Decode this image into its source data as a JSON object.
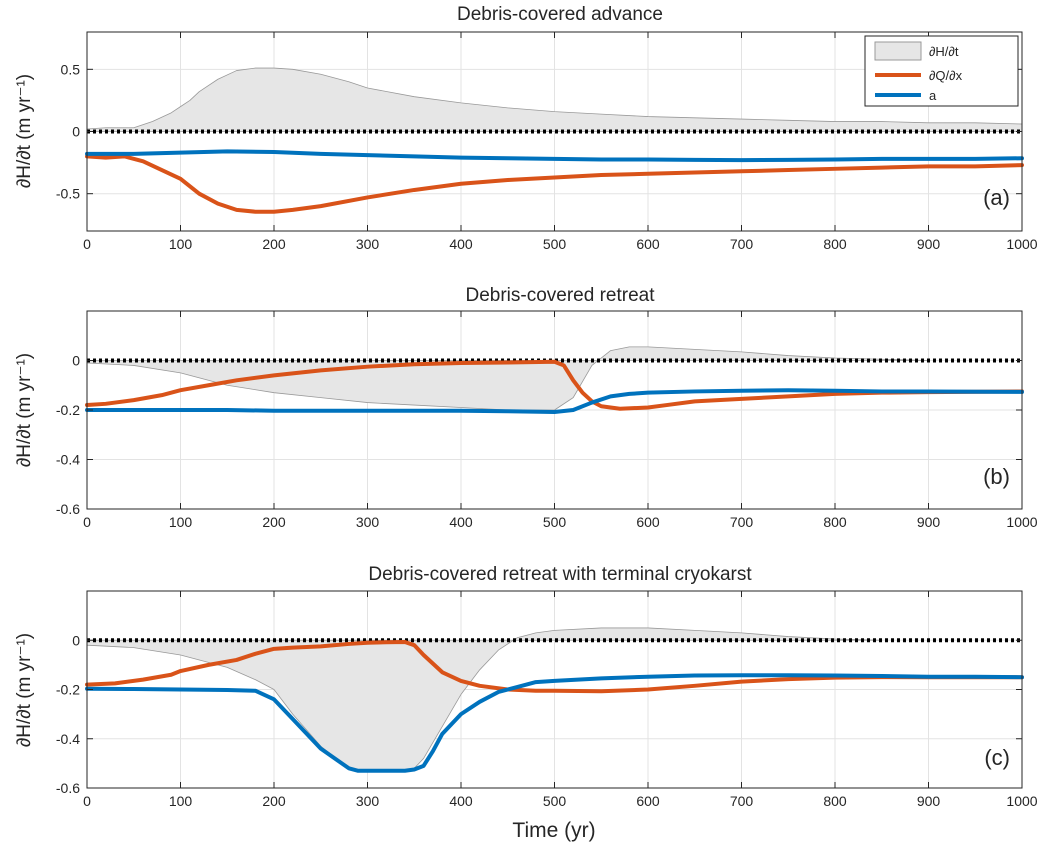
{
  "figure": {
    "xlabel": "Time (yr)"
  },
  "legend": {
    "items": [
      {
        "label": "∂H/∂t",
        "kind": "area"
      },
      {
        "label": "∂Q/∂x",
        "kind": "line"
      },
      {
        "label": "a",
        "kind": "line"
      }
    ]
  },
  "colors": {
    "dhdt_fill": "#e6e6e6",
    "dhdt_edge": "#999999",
    "dqdx": "#d95319",
    "a": "#0072bd",
    "zero_line": "#000000",
    "grid": "#e3e3e3",
    "axis": "#262626"
  },
  "chart_data": [
    {
      "type": "line",
      "title": "Debris-covered advance",
      "panel_label": "(a)",
      "ylabel": "∂H/∂t (m yr⁻¹)",
      "xlim": [
        0,
        1000
      ],
      "ylim": [
        -0.8,
        0.8
      ],
      "xticks": [
        0,
        100,
        200,
        300,
        400,
        500,
        600,
        700,
        800,
        900,
        1000
      ],
      "yticks": [
        -0.5,
        0,
        0.5
      ],
      "ytick_labels": [
        "-0.5",
        "0",
        "0.5"
      ],
      "grid": true,
      "legend": "top-right",
      "series": [
        {
          "name": "∂H/∂t",
          "style": "area",
          "x": [
            0,
            20,
            50,
            70,
            90,
            100,
            110,
            120,
            140,
            160,
            180,
            200,
            220,
            250,
            280,
            300,
            350,
            400,
            450,
            500,
            550,
            600,
            650,
            700,
            750,
            800,
            850,
            900,
            950,
            1000
          ],
          "y": [
            0.02,
            0.03,
            0.03,
            0.08,
            0.15,
            0.2,
            0.25,
            0.32,
            0.42,
            0.49,
            0.51,
            0.51,
            0.5,
            0.46,
            0.4,
            0.35,
            0.28,
            0.23,
            0.19,
            0.16,
            0.14,
            0.12,
            0.11,
            0.1,
            0.09,
            0.08,
            0.08,
            0.07,
            0.07,
            0.06
          ]
        },
        {
          "name": "∂Q/∂x",
          "style": "line",
          "x": [
            0,
            20,
            40,
            60,
            80,
            100,
            120,
            140,
            160,
            180,
            200,
            220,
            250,
            300,
            350,
            400,
            450,
            500,
            550,
            600,
            650,
            700,
            750,
            800,
            850,
            900,
            950,
            1000
          ],
          "y": [
            -0.2,
            -0.21,
            -0.2,
            -0.24,
            -0.31,
            -0.38,
            -0.5,
            -0.58,
            -0.63,
            -0.645,
            -0.645,
            -0.63,
            -0.6,
            -0.53,
            -0.47,
            -0.42,
            -0.39,
            -0.37,
            -0.35,
            -0.34,
            -0.33,
            -0.32,
            -0.31,
            -0.3,
            -0.29,
            -0.28,
            -0.28,
            -0.27
          ]
        },
        {
          "name": "a",
          "style": "line",
          "x": [
            0,
            50,
            100,
            150,
            200,
            250,
            300,
            350,
            400,
            450,
            500,
            550,
            600,
            650,
            700,
            750,
            800,
            850,
            900,
            950,
            1000
          ],
          "y": [
            -0.18,
            -0.18,
            -0.17,
            -0.16,
            -0.165,
            -0.18,
            -0.19,
            -0.2,
            -0.21,
            -0.215,
            -0.22,
            -0.225,
            -0.225,
            -0.228,
            -0.23,
            -0.228,
            -0.225,
            -0.22,
            -0.22,
            -0.22,
            -0.215
          ]
        },
        {
          "name": "zero",
          "style": "dotted",
          "x": [
            0,
            1000
          ],
          "y": [
            0,
            0
          ]
        }
      ]
    },
    {
      "type": "line",
      "title": "Debris-covered retreat",
      "panel_label": "(b)",
      "ylabel": "∂H/∂t (m yr⁻¹)",
      "xlim": [
        0,
        1000
      ],
      "ylim": [
        -0.6,
        0.2
      ],
      "xticks": [
        0,
        100,
        200,
        300,
        400,
        500,
        600,
        700,
        800,
        900,
        1000
      ],
      "yticks": [
        -0.6,
        -0.4,
        -0.2,
        0
      ],
      "ytick_labels": [
        "-0.6",
        "-0.4",
        "-0.2",
        "0"
      ],
      "grid": true,
      "series": [
        {
          "name": "∂H/∂t",
          "style": "area",
          "x": [
            0,
            50,
            100,
            150,
            200,
            250,
            300,
            350,
            400,
            450,
            500,
            520,
            540,
            560,
            580,
            600,
            650,
            700,
            750,
            800,
            850,
            900
          ],
          "y": [
            -0.01,
            -0.02,
            -0.05,
            -0.1,
            -0.13,
            -0.15,
            -0.17,
            -0.18,
            -0.19,
            -0.2,
            -0.2,
            -0.15,
            -0.02,
            0.04,
            0.055,
            0.055,
            0.045,
            0.035,
            0.02,
            0.01,
            0.005,
            0
          ]
        },
        {
          "name": "∂Q/∂x",
          "style": "line",
          "x": [
            0,
            20,
            50,
            80,
            100,
            130,
            160,
            200,
            250,
            300,
            350,
            400,
            450,
            500,
            510,
            520,
            530,
            540,
            550,
            570,
            600,
            620,
            650,
            700,
            750,
            800,
            850,
            900,
            1000
          ],
          "y": [
            -0.18,
            -0.175,
            -0.16,
            -0.14,
            -0.12,
            -0.1,
            -0.08,
            -0.06,
            -0.04,
            -0.025,
            -0.015,
            -0.01,
            -0.008,
            -0.005,
            -0.02,
            -0.08,
            -0.13,
            -0.165,
            -0.185,
            -0.195,
            -0.19,
            -0.18,
            -0.165,
            -0.155,
            -0.145,
            -0.135,
            -0.13,
            -0.128,
            -0.125
          ]
        },
        {
          "name": "a",
          "style": "line",
          "x": [
            0,
            50,
            100,
            150,
            200,
            250,
            300,
            350,
            400,
            450,
            500,
            520,
            540,
            560,
            580,
            600,
            650,
            700,
            750,
            800,
            850,
            900,
            1000
          ],
          "y": [
            -0.2,
            -0.2,
            -0.2,
            -0.2,
            -0.203,
            -0.203,
            -0.203,
            -0.203,
            -0.203,
            -0.205,
            -0.208,
            -0.2,
            -0.17,
            -0.145,
            -0.135,
            -0.13,
            -0.125,
            -0.122,
            -0.12,
            -0.122,
            -0.125,
            -0.125,
            -0.127
          ]
        },
        {
          "name": "zero",
          "style": "dotted",
          "x": [
            0,
            1000
          ],
          "y": [
            0,
            0
          ]
        }
      ]
    },
    {
      "type": "line",
      "title": "Debris-covered retreat with terminal cryokarst",
      "panel_label": "(c)",
      "ylabel": "∂H/∂t (m yr⁻¹)",
      "xlabel": "Time (yr)",
      "xlim": [
        0,
        1000
      ],
      "ylim": [
        -0.6,
        0.2
      ],
      "xticks": [
        0,
        100,
        200,
        300,
        400,
        500,
        600,
        700,
        800,
        900,
        1000
      ],
      "yticks": [
        -0.6,
        -0.4,
        -0.2,
        0
      ],
      "ytick_labels": [
        "-0.6",
        "-0.4",
        "-0.2",
        "0"
      ],
      "grid": true,
      "series": [
        {
          "name": "∂H/∂t",
          "style": "area",
          "x": [
            0,
            50,
            100,
            150,
            180,
            200,
            220,
            250,
            280,
            300,
            320,
            340,
            350,
            360,
            380,
            400,
            420,
            440,
            460,
            480,
            500,
            550,
            600,
            650,
            700,
            750,
            800,
            850
          ],
          "y": [
            -0.02,
            -0.03,
            -0.06,
            -0.11,
            -0.16,
            -0.2,
            -0.3,
            -0.43,
            -0.52,
            -0.53,
            -0.53,
            -0.53,
            -0.52,
            -0.48,
            -0.35,
            -0.22,
            -0.12,
            -0.04,
            0.01,
            0.03,
            0.04,
            0.05,
            0.05,
            0.04,
            0.03,
            0.015,
            0.005,
            0
          ]
        },
        {
          "name": "∂Q/∂x",
          "style": "line",
          "x": [
            0,
            30,
            60,
            90,
            100,
            130,
            160,
            180,
            200,
            220,
            250,
            280,
            300,
            320,
            340,
            350,
            360,
            380,
            400,
            420,
            450,
            480,
            500,
            550,
            600,
            650,
            700,
            750,
            800,
            850,
            900,
            1000
          ],
          "y": [
            -0.18,
            -0.175,
            -0.16,
            -0.14,
            -0.125,
            -0.1,
            -0.08,
            -0.055,
            -0.035,
            -0.03,
            -0.025,
            -0.015,
            -0.01,
            -0.008,
            -0.007,
            -0.02,
            -0.06,
            -0.13,
            -0.165,
            -0.185,
            -0.2,
            -0.205,
            -0.205,
            -0.207,
            -0.2,
            -0.185,
            -0.168,
            -0.158,
            -0.152,
            -0.15,
            -0.15,
            -0.15
          ]
        },
        {
          "name": "a",
          "style": "line",
          "x": [
            0,
            50,
            100,
            150,
            180,
            200,
            220,
            250,
            280,
            290,
            300,
            320,
            340,
            350,
            360,
            370,
            380,
            400,
            420,
            440,
            460,
            480,
            500,
            550,
            600,
            650,
            700,
            750,
            800,
            850,
            900,
            950,
            1000
          ],
          "y": [
            -0.197,
            -0.198,
            -0.2,
            -0.202,
            -0.205,
            -0.24,
            -0.32,
            -0.44,
            -0.52,
            -0.53,
            -0.53,
            -0.53,
            -0.53,
            -0.525,
            -0.51,
            -0.45,
            -0.38,
            -0.3,
            -0.25,
            -0.21,
            -0.19,
            -0.17,
            -0.165,
            -0.155,
            -0.148,
            -0.143,
            -0.142,
            -0.142,
            -0.143,
            -0.145,
            -0.148,
            -0.148,
            -0.15
          ]
        },
        {
          "name": "zero",
          "style": "dotted",
          "x": [
            0,
            1000
          ],
          "y": [
            0,
            0
          ]
        }
      ]
    }
  ]
}
